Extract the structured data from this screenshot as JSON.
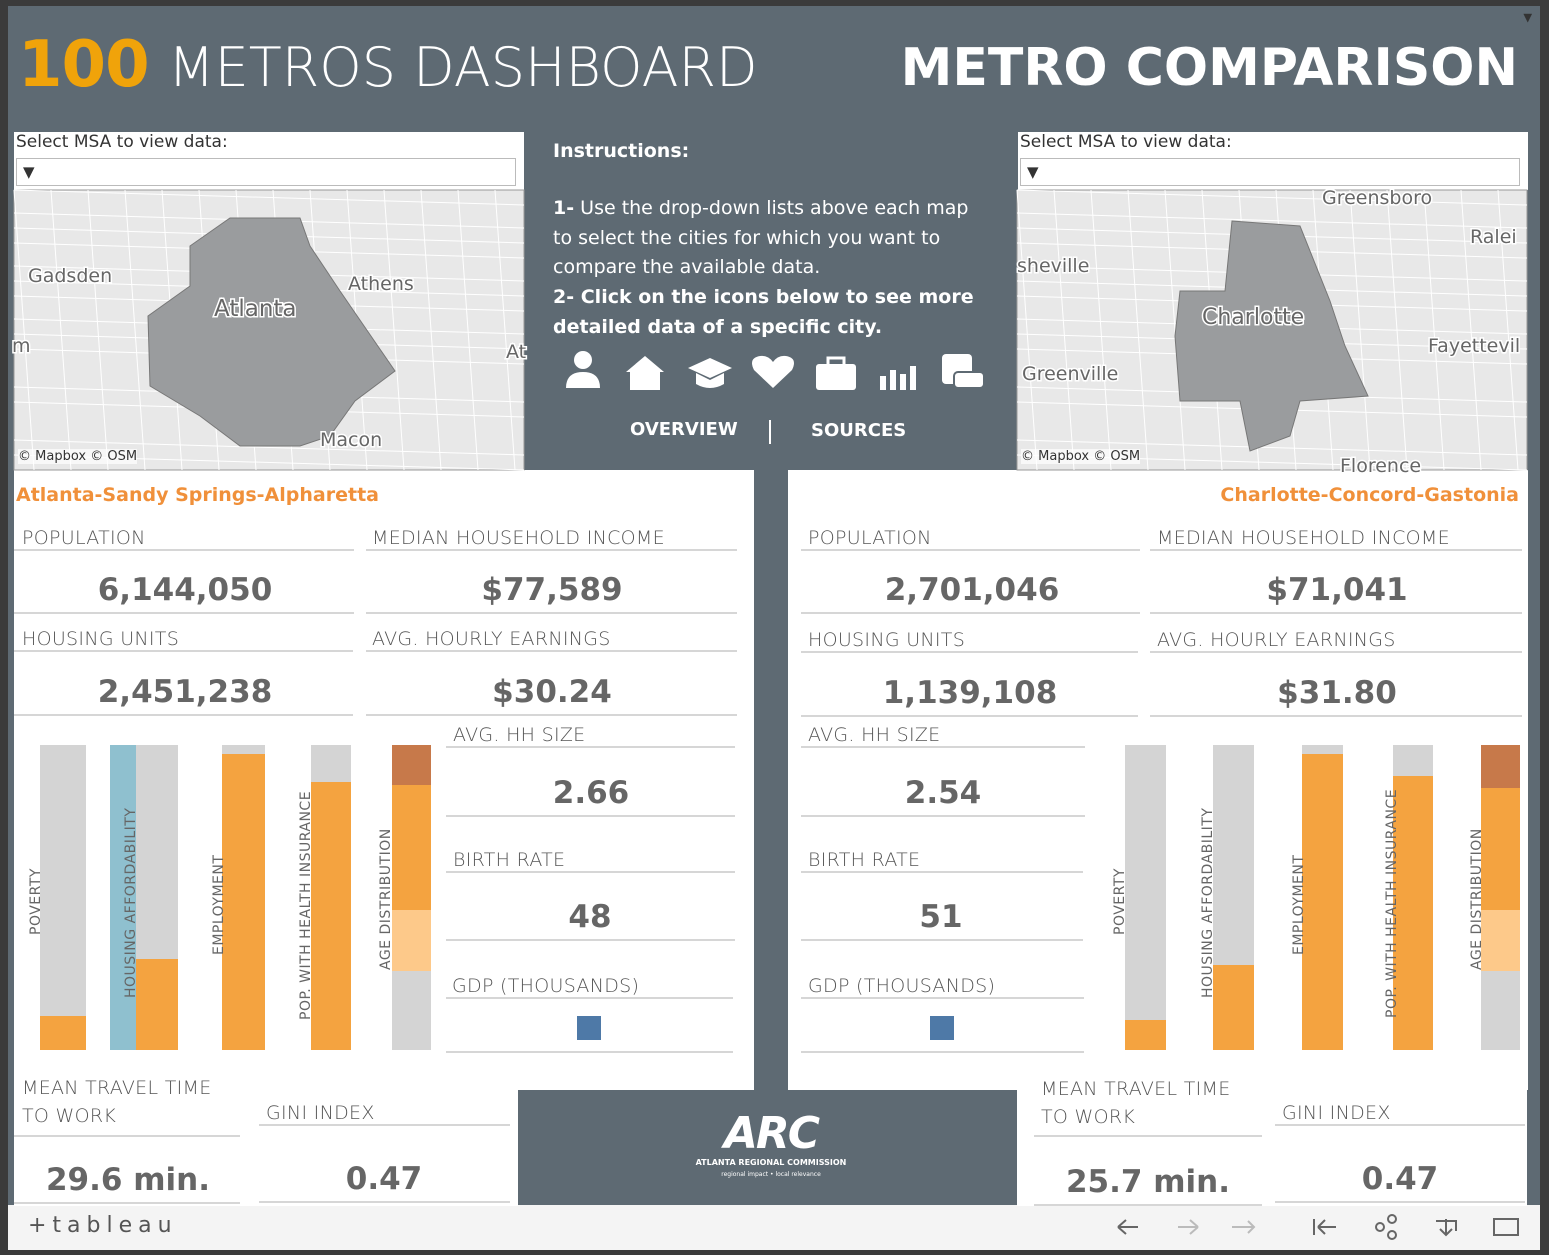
{
  "header": {
    "number": "100",
    "title": "METROS DASHBOARD",
    "subtitle": "METRO COMPARISON"
  },
  "instructions": {
    "title": "Instructions:",
    "steps": [
      {
        "num": "1-",
        "text": "Use the drop-down lists above each map to select the cities for which you want to compare the available data."
      },
      {
        "num": "2-",
        "text": "Click on the icons below to see more detailed data of a specific city."
      }
    ],
    "links": [
      "OVERVIEW",
      "SOURCES"
    ]
  },
  "arc": {
    "logo": "ARC",
    "name": "ATLANTA REGIONAL COMMISSION",
    "tagline": "regional impact • local relevance"
  },
  "footer": {
    "brand": "+tableau"
  },
  "metros": [
    {
      "select_label": "Select MSA to view data:",
      "selected": "Atlanta-Sandy Springs-Alpharetta",
      "map_labels": [
        "Gadsden",
        "Atlanta",
        "Athens",
        "Macon",
        "m",
        "At"
      ],
      "map_credit": "© Mapbox  © OSM",
      "name": "Atlanta-Sandy Springs-Alpharetta",
      "stats": [
        {
          "label": "POPULATION",
          "value": "6,144,050"
        },
        {
          "label": "MEDIAN HOUSEHOLD INCOME",
          "value": "$77,589"
        },
        {
          "label": "HOUSING UNITS",
          "value": "2,451,238"
        },
        {
          "label": "AVG. HOURLY EARNINGS",
          "value": "$30.24"
        },
        {
          "label": "AVG. HH SIZE",
          "value": "2.66"
        },
        {
          "label": "BIRTH RATE",
          "value": "48"
        },
        {
          "label": "GDP (THOUSANDS)"
        },
        {
          "label": "MEAN TRAVEL TIME TO WORK",
          "value": "29.6 min."
        },
        {
          "label": "GINI INDEX",
          "value": "0.47"
        }
      ]
    },
    {
      "select_label": "Select MSA to view data:",
      "selected": "Charlotte-Concord-Gastonia",
      "map_labels": [
        "Greensboro",
        "Ralei",
        "sheville",
        "Charlotte",
        "Fayettevil",
        "Greenville",
        "Florence"
      ],
      "map_credit": "© Mapbox  © OSM",
      "name": "Charlotte-Concord-Gastonia",
      "stats": [
        {
          "label": "POPULATION",
          "value": "2,701,046"
        },
        {
          "label": "MEDIAN HOUSEHOLD INCOME",
          "value": "$71,041"
        },
        {
          "label": "HOUSING UNITS",
          "value": "1,139,108"
        },
        {
          "label": "AVG. HOURLY EARNINGS",
          "value": "$31.80"
        },
        {
          "label": "AVG. HH SIZE",
          "value": "2.54"
        },
        {
          "label": "BIRTH RATE",
          "value": "51"
        },
        {
          "label": "GDP (THOUSANDS)"
        },
        {
          "label": "MEAN TRAVEL TIME TO WORK",
          "value": "25.7 min."
        },
        {
          "label": "GINI INDEX",
          "value": "0.47"
        }
      ]
    }
  ],
  "chart_data": [
    {
      "type": "bar",
      "categories": [
        "POVERTY",
        "HOUSING AFFORDABILITY",
        "EMPLOYMENT",
        "POP. WITH HEALTH INSURANCE"
      ],
      "values": [
        11,
        30,
        97,
        88
      ],
      "color": "#f4a340",
      "ylim": [
        0,
        100
      ],
      "age_distribution": {
        "name": "AGE DISTRIBUTION",
        "values": [
          26,
          20,
          41,
          13
        ],
        "colors": [
          "#d4d4d4",
          "#fdc98a",
          "#f4a340",
          "#c7794a"
        ]
      }
    },
    {
      "type": "bar",
      "categories": [
        "POVERTY",
        "HOUSING AFFORDABILITY",
        "EMPLOYMENT",
        "POP. WITH HEALTH INSURANCE"
      ],
      "values": [
        10,
        28,
        97,
        90
      ],
      "color": "#f4a340",
      "ylim": [
        0,
        100
      ],
      "age_distribution": {
        "name": "AGE DISTRIBUTION",
        "values": [
          26,
          20,
          40,
          14
        ],
        "colors": [
          "#d4d4d4",
          "#fdc98a",
          "#f4a340",
          "#c7794a"
        ]
      }
    }
  ]
}
